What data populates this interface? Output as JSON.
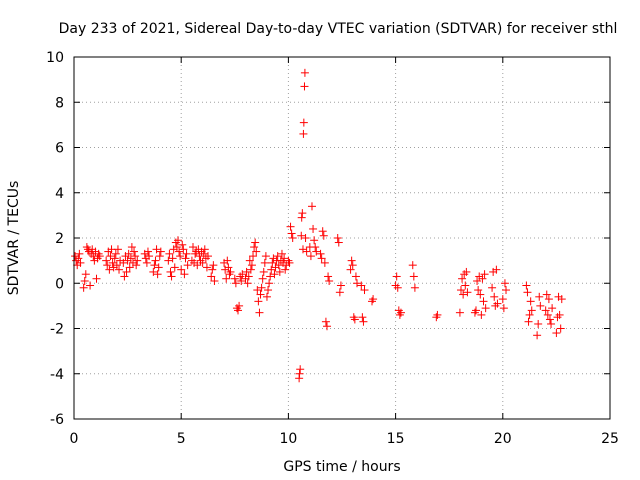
{
  "chart_data": {
    "type": "scatter",
    "title": "Day 233 of 2021, Sidereal Day-to-day VTEC variation (SDTVAR) for receiver sthl",
    "xlabel": "GPS time / hours",
    "ylabel": "SDTVAR / TECUs",
    "xlim": [
      0,
      25
    ],
    "ylim": [
      -6,
      10
    ],
    "xticks": [
      0,
      5,
      10,
      15,
      20,
      25
    ],
    "yticks": [
      -6,
      -4,
      -2,
      0,
      2,
      4,
      6,
      8,
      10
    ],
    "grid": true,
    "marker": "plus",
    "color": "#ff0000",
    "series": [
      {
        "name": "SDTVAR",
        "points": [
          [
            0.05,
            1.2
          ],
          [
            0.1,
            1.0
          ],
          [
            0.15,
            0.8
          ],
          [
            0.2,
            1.1
          ],
          [
            0.25,
            1.3
          ],
          [
            0.3,
            0.9
          ],
          [
            0.45,
            -0.2
          ],
          [
            0.5,
            0.1
          ],
          [
            0.55,
            0.4
          ],
          [
            0.6,
            1.6
          ],
          [
            0.65,
            1.5
          ],
          [
            0.7,
            1.4
          ],
          [
            0.75,
            -0.1
          ],
          [
            0.8,
            1.3
          ],
          [
            0.85,
            1.5
          ],
          [
            0.9,
            1.2
          ],
          [
            0.95,
            1.0
          ],
          [
            1.0,
            1.4
          ],
          [
            1.05,
            0.2
          ],
          [
            1.1,
            1.1
          ],
          [
            1.15,
            1.3
          ],
          [
            1.2,
            1.2
          ],
          [
            1.5,
            1.0
          ],
          [
            1.55,
            0.8
          ],
          [
            1.6,
            1.4
          ],
          [
            1.65,
            0.6
          ],
          [
            1.7,
            1.2
          ],
          [
            1.75,
            1.5
          ],
          [
            1.8,
            0.9
          ],
          [
            1.85,
            0.7
          ],
          [
            1.9,
            1.1
          ],
          [
            1.95,
            1.3
          ],
          [
            2.0,
            0.8
          ],
          [
            2.05,
            1.5
          ],
          [
            2.1,
            0.6
          ],
          [
            2.15,
            1.0
          ],
          [
            2.3,
            0.9
          ],
          [
            2.35,
            0.3
          ],
          [
            2.4,
            1.2
          ],
          [
            2.45,
            0.5
          ],
          [
            2.5,
            1.0
          ],
          [
            2.55,
            1.3
          ],
          [
            2.6,
            0.7
          ],
          [
            2.65,
            1.1
          ],
          [
            2.7,
            1.6
          ],
          [
            2.75,
            0.9
          ],
          [
            2.8,
            1.4
          ],
          [
            2.85,
            1.2
          ],
          [
            2.9,
            0.8
          ],
          [
            2.95,
            1.0
          ],
          [
            3.3,
            1.3
          ],
          [
            3.35,
            1.1
          ],
          [
            3.4,
            0.9
          ],
          [
            3.45,
            1.4
          ],
          [
            3.5,
            1.2
          ],
          [
            3.7,
            0.5
          ],
          [
            3.75,
            0.8
          ],
          [
            3.8,
            1.0
          ],
          [
            3.85,
            1.5
          ],
          [
            3.9,
            0.4
          ],
          [
            3.95,
            0.7
          ],
          [
            4.0,
            1.2
          ],
          [
            4.05,
            1.4
          ],
          [
            4.4,
            1.0
          ],
          [
            4.45,
            1.3
          ],
          [
            4.5,
            0.5
          ],
          [
            4.55,
            0.3
          ],
          [
            4.6,
            1.1
          ],
          [
            4.65,
            1.5
          ],
          [
            4.7,
            0.7
          ],
          [
            4.75,
            1.8
          ],
          [
            4.8,
            1.6
          ],
          [
            4.85,
            1.9
          ],
          [
            4.9,
            1.4
          ],
          [
            4.95,
            1.2
          ],
          [
            5.0,
            0.6
          ],
          [
            5.05,
            1.7
          ],
          [
            5.1,
            1.5
          ],
          [
            5.15,
            0.4
          ],
          [
            5.2,
            1.1
          ],
          [
            5.25,
            1.3
          ],
          [
            5.3,
            0.8
          ],
          [
            5.5,
            1.0
          ],
          [
            5.55,
            1.6
          ],
          [
            5.6,
            0.9
          ],
          [
            5.65,
            1.3
          ],
          [
            5.7,
            1.4
          ],
          [
            5.75,
            0.8
          ],
          [
            5.8,
            1.5
          ],
          [
            5.85,
            1.2
          ],
          [
            5.9,
            1.0
          ],
          [
            5.95,
            1.4
          ],
          [
            6.0,
            0.9
          ],
          [
            6.05,
            1.3
          ],
          [
            6.1,
            1.5
          ],
          [
            6.15,
            1.1
          ],
          [
            6.2,
            0.7
          ],
          [
            6.25,
            1.2
          ],
          [
            6.4,
            0.3
          ],
          [
            6.45,
            0.6
          ],
          [
            6.5,
            0.8
          ],
          [
            6.55,
            0.1
          ],
          [
            7.0,
            0.9
          ],
          [
            7.05,
            0.6
          ],
          [
            7.1,
            0.2
          ],
          [
            7.15,
            1.0
          ],
          [
            7.2,
            0.7
          ],
          [
            7.25,
            0.4
          ],
          [
            7.3,
            0.5
          ],
          [
            7.5,
            0.2
          ],
          [
            7.55,
            0.0
          ],
          [
            7.6,
            -1.1
          ],
          [
            7.65,
            -1.2
          ],
          [
            7.7,
            -1.0
          ],
          [
            7.75,
            0.3
          ],
          [
            7.8,
            0.1
          ],
          [
            7.85,
            0.4
          ],
          [
            8.0,
            0.2
          ],
          [
            8.05,
            0.5
          ],
          [
            8.1,
            0.0
          ],
          [
            8.15,
            0.3
          ],
          [
            8.2,
            1.0
          ],
          [
            8.25,
            0.6
          ],
          [
            8.3,
            0.8
          ],
          [
            8.35,
            1.2
          ],
          [
            8.4,
            1.6
          ],
          [
            8.45,
            1.8
          ],
          [
            8.5,
            1.4
          ],
          [
            8.55,
            -0.3
          ],
          [
            8.6,
            -0.8
          ],
          [
            8.65,
            -1.3
          ],
          [
            8.7,
            -0.5
          ],
          [
            8.75,
            -0.2
          ],
          [
            8.8,
            0.2
          ],
          [
            8.85,
            0.5
          ],
          [
            8.9,
            0.9
          ],
          [
            8.95,
            1.2
          ],
          [
            9.0,
            -0.6
          ],
          [
            9.05,
            -0.3
          ],
          [
            9.1,
            0.0
          ],
          [
            9.15,
            0.3
          ],
          [
            9.2,
            0.6
          ],
          [
            9.25,
            0.9
          ],
          [
            9.3,
            1.1
          ],
          [
            9.35,
            0.4
          ],
          [
            9.4,
            0.7
          ],
          [
            9.45,
            1.0
          ],
          [
            9.5,
            1.2
          ],
          [
            9.55,
            0.8
          ],
          [
            9.6,
            0.5
          ],
          [
            9.65,
            1.0
          ],
          [
            9.7,
            1.3
          ],
          [
            9.75,
            0.9
          ],
          [
            9.8,
            1.1
          ],
          [
            9.85,
            0.6
          ],
          [
            9.9,
            0.8
          ],
          [
            10.0,
            1.0
          ],
          [
            10.05,
            0.9
          ],
          [
            10.1,
            2.5
          ],
          [
            10.15,
            2.2
          ],
          [
            10.2,
            2.0
          ],
          [
            10.5,
            -4.2
          ],
          [
            10.52,
            -4.0
          ],
          [
            10.55,
            -3.8
          ],
          [
            10.6,
            2.1
          ],
          [
            10.62,
            2.9
          ],
          [
            10.65,
            3.1
          ],
          [
            10.68,
            1.5
          ],
          [
            10.7,
            6.6
          ],
          [
            10.72,
            7.1
          ],
          [
            10.75,
            8.7
          ],
          [
            10.77,
            9.3
          ],
          [
            10.8,
            2.0
          ],
          [
            10.85,
            1.4
          ],
          [
            11.0,
            1.6
          ],
          [
            11.05,
            1.2
          ],
          [
            11.1,
            3.4
          ],
          [
            11.15,
            2.4
          ],
          [
            11.2,
            1.9
          ],
          [
            11.25,
            1.6
          ],
          [
            11.3,
            1.4
          ],
          [
            11.5,
            1.3
          ],
          [
            11.55,
            1.1
          ],
          [
            11.6,
            2.3
          ],
          [
            11.65,
            2.1
          ],
          [
            11.7,
            0.9
          ],
          [
            11.75,
            -1.7
          ],
          [
            11.8,
            -1.9
          ],
          [
            11.85,
            0.3
          ],
          [
            11.9,
            0.1
          ],
          [
            12.3,
            2.0
          ],
          [
            12.35,
            1.8
          ],
          [
            12.4,
            -0.4
          ],
          [
            12.45,
            -0.1
          ],
          [
            12.9,
            0.6
          ],
          [
            12.95,
            1.0
          ],
          [
            13.0,
            0.8
          ],
          [
            13.05,
            -1.5
          ],
          [
            13.1,
            -1.6
          ],
          [
            13.15,
            0.3
          ],
          [
            13.2,
            0.0
          ],
          [
            13.4,
            -0.1
          ],
          [
            13.45,
            -1.5
          ],
          [
            13.5,
            -1.7
          ],
          [
            13.55,
            -0.3
          ],
          [
            13.9,
            -0.8
          ],
          [
            13.95,
            -0.7
          ],
          [
            15.0,
            -0.1
          ],
          [
            15.05,
            0.3
          ],
          [
            15.1,
            -0.2
          ],
          [
            15.15,
            -1.2
          ],
          [
            15.2,
            -1.4
          ],
          [
            15.25,
            -1.3
          ],
          [
            15.8,
            0.8
          ],
          [
            15.85,
            0.3
          ],
          [
            15.9,
            -0.2
          ],
          [
            16.9,
            -1.5
          ],
          [
            16.95,
            -1.4
          ],
          [
            18.0,
            -1.3
          ],
          [
            18.05,
            -0.3
          ],
          [
            18.1,
            0.2
          ],
          [
            18.15,
            -0.5
          ],
          [
            18.2,
            0.4
          ],
          [
            18.25,
            -0.1
          ],
          [
            18.3,
            0.5
          ],
          [
            18.35,
            -0.4
          ],
          [
            18.7,
            -1.3
          ],
          [
            18.75,
            -1.2
          ],
          [
            18.8,
            0.1
          ],
          [
            18.85,
            -0.3
          ],
          [
            18.9,
            0.3
          ],
          [
            18.95,
            -0.5
          ],
          [
            19.0,
            -1.4
          ],
          [
            19.05,
            0.2
          ],
          [
            19.1,
            -0.8
          ],
          [
            19.15,
            0.4
          ],
          [
            19.2,
            -1.1
          ],
          [
            19.5,
            -0.2
          ],
          [
            19.55,
            0.5
          ],
          [
            19.6,
            -0.6
          ],
          [
            19.65,
            -1.0
          ],
          [
            19.7,
            0.6
          ],
          [
            19.75,
            -0.9
          ],
          [
            20.0,
            -0.7
          ],
          [
            20.05,
            -1.1
          ],
          [
            20.1,
            0.0
          ],
          [
            20.15,
            -0.3
          ],
          [
            21.1,
            -0.1
          ],
          [
            21.15,
            -0.4
          ],
          [
            21.2,
            -1.7
          ],
          [
            21.25,
            -1.4
          ],
          [
            21.3,
            -0.8
          ],
          [
            21.35,
            -1.2
          ],
          [
            21.6,
            -2.3
          ],
          [
            21.65,
            -1.8
          ],
          [
            21.7,
            -0.6
          ],
          [
            21.75,
            -1.0
          ],
          [
            22.0,
            -1.2
          ],
          [
            22.05,
            -0.5
          ],
          [
            22.1,
            -1.4
          ],
          [
            22.15,
            -0.7
          ],
          [
            22.2,
            -1.6
          ],
          [
            22.25,
            -1.8
          ],
          [
            22.3,
            -1.1
          ],
          [
            22.5,
            -2.2
          ],
          [
            22.55,
            -1.5
          ],
          [
            22.6,
            -0.6
          ],
          [
            22.65,
            -1.4
          ],
          [
            22.7,
            -2.0
          ],
          [
            22.75,
            -0.7
          ]
        ]
      }
    ]
  }
}
